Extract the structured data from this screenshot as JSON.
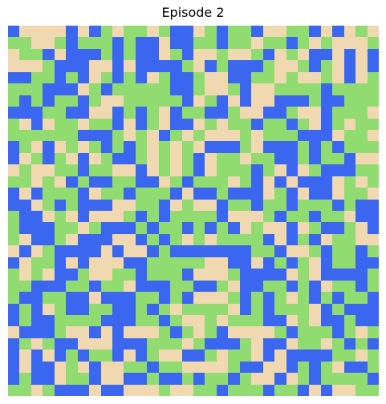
{
  "header": {
    "title": "Episode 2"
  },
  "board": {
    "rows": 32,
    "cols": 32,
    "palette": {
      "0": "#f0d8b0",
      "1": "#90dc70",
      "2": "#3a66f0"
    },
    "grid": [
      "20000202101101220121120011202010",
      "11001211121220221121101121010001",
      "01120222121220120010012010220202",
      "00012220020222210212221001210202",
      "22112120121201221002211010010201",
      "11122201211111221001200111121111",
      "12121121001111120120200222122111",
      "22211220021210211221002210021110",
      "10201101120210220101121121021011",
      "11111122210102101000101112220110",
      "21020101212101010222102221212111",
      "20121020122101012011011221211200",
      "01001121100201012011121020122211",
      "11010212211220121110120202220101",
      "20211120112111202212220120220110",
      "22012122200112010021121121112122",
      "12201020001212111120001211211022",
      "12221101222121121212010020122102",
      "10221022200212101011112021201100",
      "02012222020021222222211200121121",
      "20112020002211111002202121021122",
      "10102210011211120001222201022221",
      "11222112110222112210221121201121",
      "12211220222112120001212101212112",
      "21201221122121011110212111021222",
      "21221111222112100101112201022122",
      "02221002020001210120000121112101",
      "21012200022211101222102201101212",
      "20202121120210022101102022221101",
      "20220102001121100001220021210221",
      "21220112002212212112100201211112",
      "11012220220001001121112112020011"
    ]
  }
}
